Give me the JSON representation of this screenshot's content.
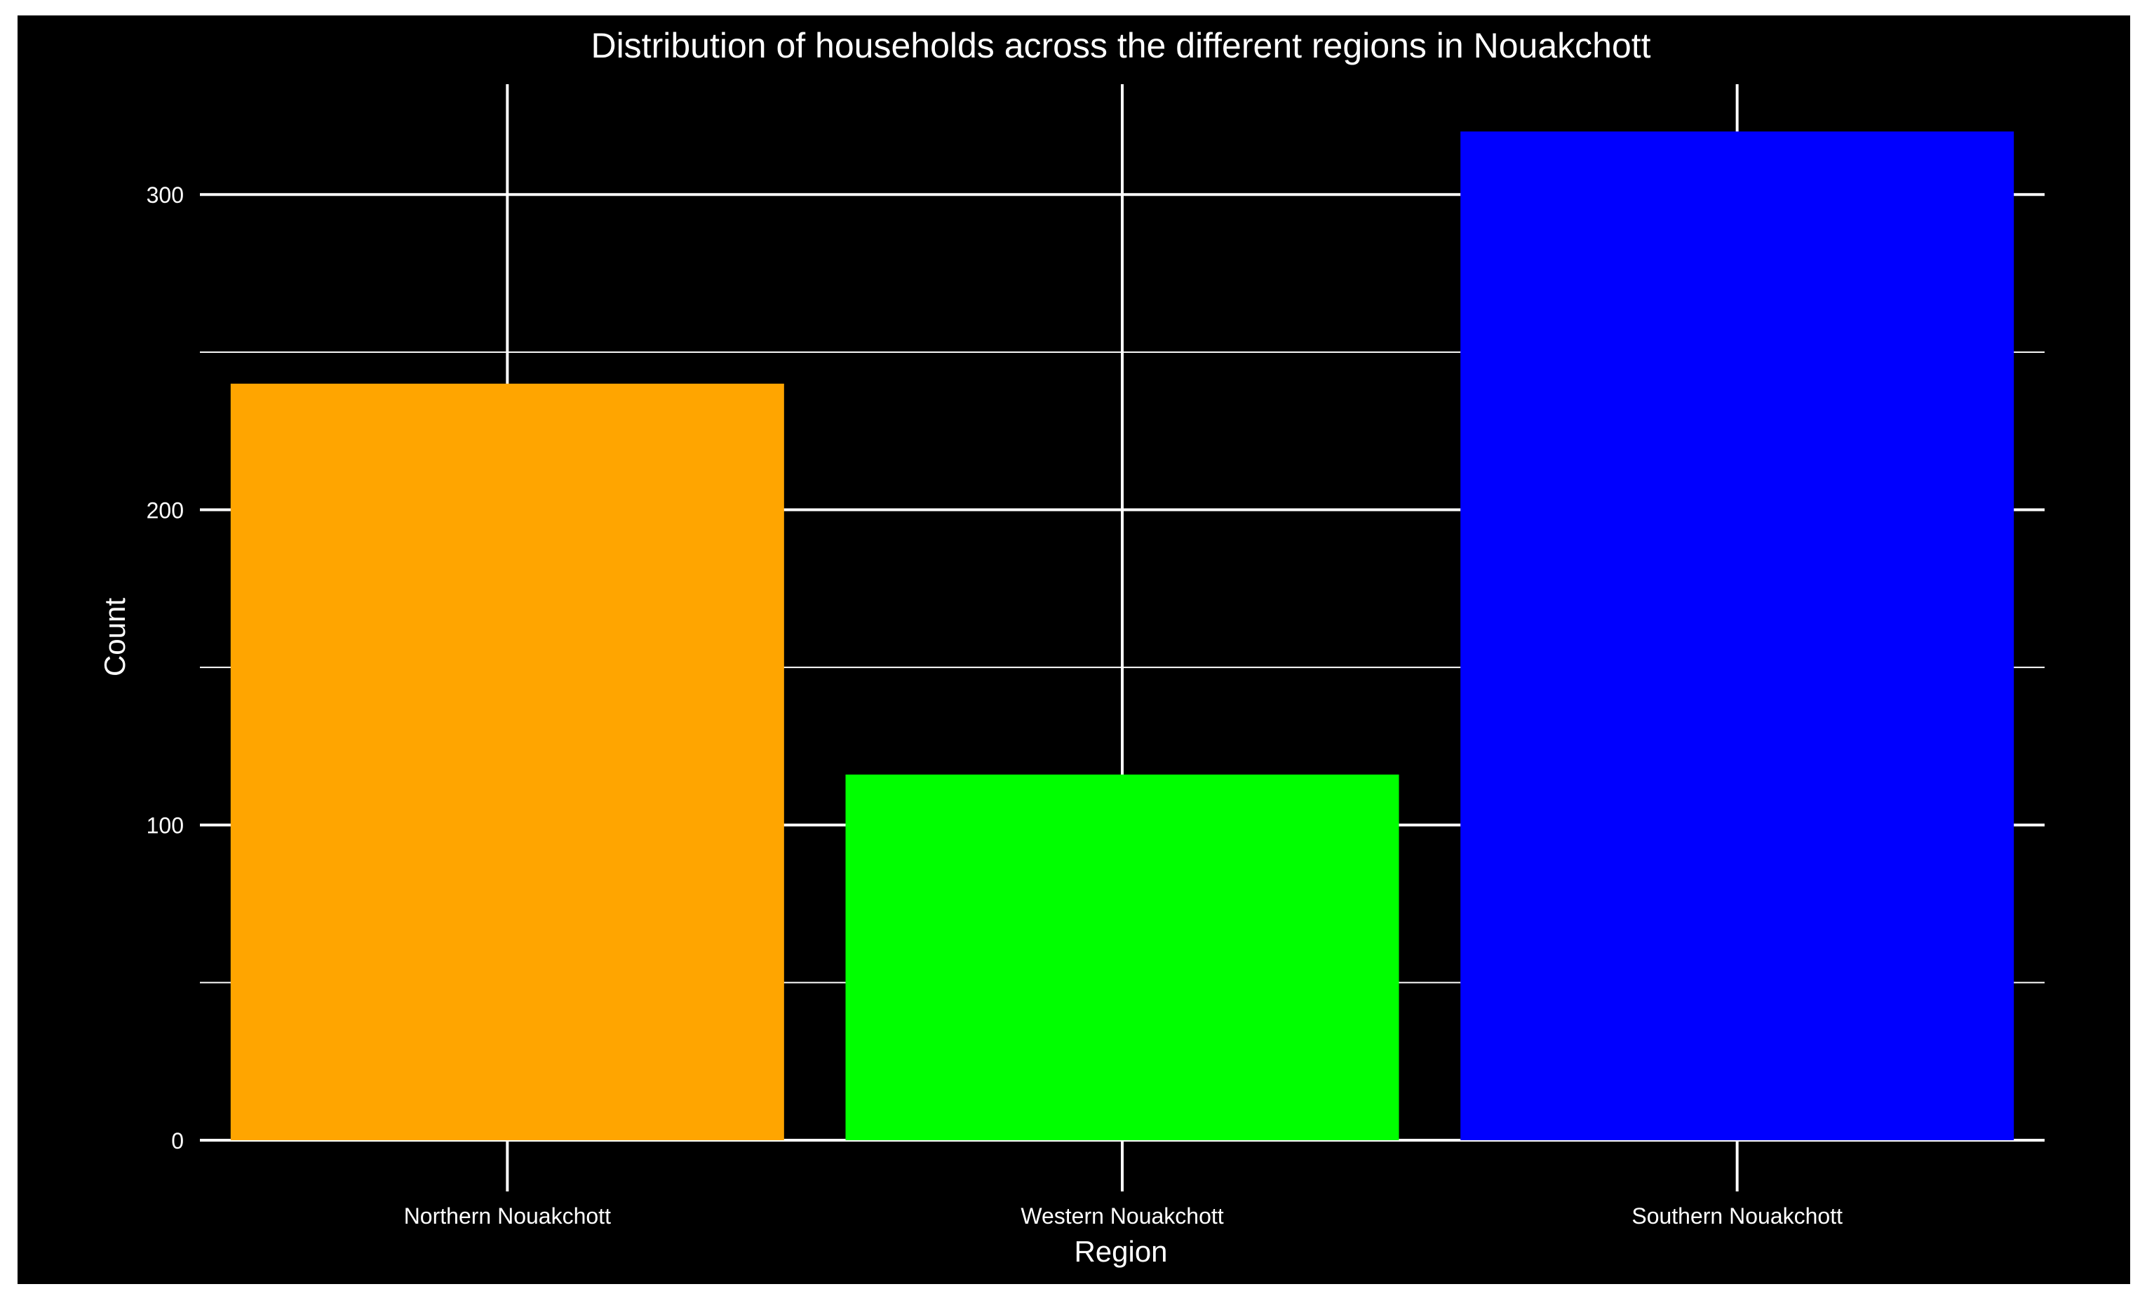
{
  "chart_data": {
    "type": "bar",
    "title": "Distribution of households across the different regions in Nouakchott",
    "xlabel": "Region",
    "ylabel": "Count",
    "categories": [
      "Northern Nouakchott",
      "Western Nouakchott",
      "Southern Nouakchott"
    ],
    "values": [
      240,
      116,
      320
    ],
    "colors": [
      "#FFA500",
      "#00FF00",
      "#0000FF"
    ],
    "ylim": [
      0,
      335
    ],
    "yticks": [
      0,
      100,
      200,
      300
    ],
    "yticks_minor": [
      50,
      150,
      250
    ],
    "grid": true,
    "legend": "none",
    "background": "#000000",
    "text_color": "#FFFFFF",
    "grid_color": "#FFFFFF"
  }
}
